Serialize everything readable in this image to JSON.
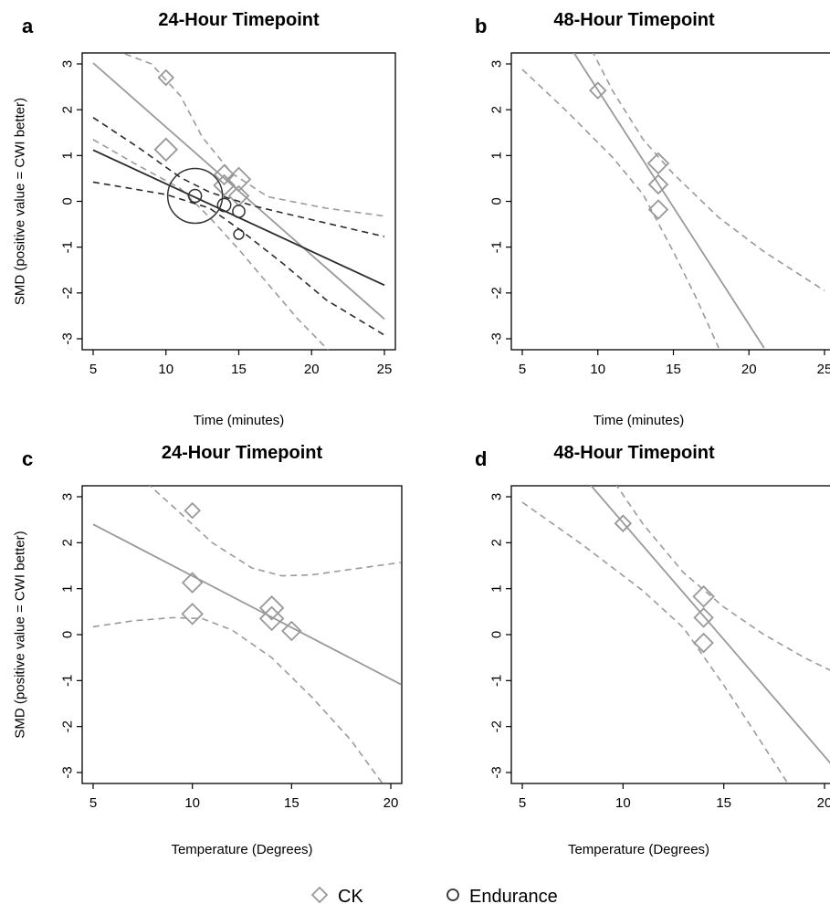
{
  "chart_data": [
    {
      "type": "scatter",
      "panel_letter": "a",
      "title": "24-Hour Timepoint",
      "xlabel": "Time (minutes)",
      "ylabel": "SMD (positive value = CWI better)",
      "xlim": [
        5,
        25
      ],
      "ylim": [
        -3,
        3
      ],
      "xticks": [
        5,
        10,
        15,
        20,
        25
      ],
      "yticks": [
        -3,
        -2,
        -1,
        0,
        1,
        2,
        3
      ],
      "series": [
        {
          "name": "CK",
          "marker": "diamond",
          "color": "#999999",
          "points": [
            {
              "x": 10,
              "y": 2.7,
              "weight": 0.3
            },
            {
              "x": 10,
              "y": 1.13,
              "weight": 0.7
            },
            {
              "x": 14,
              "y": 0.58,
              "weight": 0.55
            },
            {
              "x": 14,
              "y": 0.35,
              "weight": 0.6
            },
            {
              "x": 15,
              "y": 0.48,
              "weight": 0.75
            },
            {
              "x": 15,
              "y": 0.12,
              "weight": 0.55
            }
          ],
          "fit": [
            [
              5,
              3.02
            ],
            [
              25,
              -2.57
            ]
          ],
          "ci_lower": [
            [
              5,
              1.35
            ],
            [
              8,
              0.8
            ],
            [
              11,
              0.28
            ],
            [
              13,
              -0.35
            ],
            [
              15,
              -1.05
            ],
            [
              17,
              -1.8
            ],
            [
              19,
              -2.55
            ],
            [
              21.3,
              -3.3
            ]
          ],
          "ci_upper": [
            [
              6.5,
              3.3
            ],
            [
              9,
              3.0
            ],
            [
              11,
              2.3
            ],
            [
              12.5,
              1.4
            ],
            [
              14.5,
              0.62
            ],
            [
              17,
              0.1
            ],
            [
              21,
              -0.15
            ],
            [
              25,
              -0.32
            ]
          ]
        },
        {
          "name": "Endurance",
          "marker": "circle",
          "color": "#333333",
          "points": [
            {
              "x": 12,
              "y": 0.12,
              "weight": 1.0
            },
            {
              "x": 14,
              "y": -0.08,
              "weight": 0.35
            },
            {
              "x": 15,
              "y": -0.22,
              "weight": 0.3
            },
            {
              "x": 15,
              "y": -0.72,
              "weight": 0.2
            }
          ],
          "fit": [
            [
              5,
              1.12
            ],
            [
              25,
              -1.83
            ]
          ],
          "ci_lower": [
            [
              5,
              0.42
            ],
            [
              10,
              0.15
            ],
            [
              13,
              -0.15
            ],
            [
              15,
              -0.6
            ],
            [
              18,
              -1.35
            ],
            [
              21,
              -2.15
            ],
            [
              25,
              -2.92
            ]
          ],
          "ci_upper": [
            [
              5,
              1.83
            ],
            [
              8,
              1.2
            ],
            [
              11,
              0.52
            ],
            [
              13,
              0.2
            ],
            [
              16,
              -0.1
            ],
            [
              20,
              -0.4
            ],
            [
              25,
              -0.77
            ]
          ]
        }
      ]
    },
    {
      "type": "scatter",
      "panel_letter": "b",
      "title": "48-Hour Timepoint",
      "xlabel": "Time (minutes)",
      "ylabel": "",
      "xlim": [
        5,
        25
      ],
      "ylim": [
        -3,
        3
      ],
      "xticks": [
        5,
        10,
        15,
        20,
        25
      ],
      "yticks": [
        -3,
        -2,
        -1,
        0,
        1,
        2,
        3
      ],
      "series": [
        {
          "name": "CK",
          "marker": "diamond",
          "color": "#999999",
          "points": [
            {
              "x": 10,
              "y": 2.42,
              "weight": 0.35
            },
            {
              "x": 14,
              "y": 0.83,
              "weight": 0.6
            },
            {
              "x": 14,
              "y": 0.37,
              "weight": 0.5
            },
            {
              "x": 14,
              "y": -0.18,
              "weight": 0.5
            }
          ],
          "fit": [
            [
              8.3,
              3.3
            ],
            [
              21,
              -3.2
            ]
          ],
          "ci_lower": [
            [
              5,
              2.88
            ],
            [
              8,
              1.95
            ],
            [
              11,
              0.95
            ],
            [
              13,
              0.15
            ],
            [
              15,
              -1.1
            ],
            [
              16.5,
              -2.1
            ],
            [
              18,
              -3.2
            ]
          ],
          "ci_upper": [
            [
              9.6,
              3.3
            ],
            [
              11,
              2.4
            ],
            [
              13,
              1.35
            ],
            [
              15,
              0.6
            ],
            [
              18,
              -0.35
            ],
            [
              21,
              -1.1
            ],
            [
              25,
              -1.95
            ]
          ]
        }
      ]
    },
    {
      "type": "scatter",
      "panel_letter": "c",
      "title": "24-Hour Timepoint",
      "xlabel": "Temperature (Degrees)",
      "ylabel": "SMD (positive value = CWI better)",
      "xlim": [
        5,
        20
      ],
      "ylim": [
        -3,
        3
      ],
      "xticks": [
        5,
        10,
        15,
        20
      ],
      "yticks": [
        -3,
        -2,
        -1,
        0,
        1,
        2,
        3
      ],
      "series": [
        {
          "name": "CK",
          "marker": "diamond",
          "color": "#999999",
          "points": [
            {
              "x": 10,
              "y": 2.7,
              "weight": 0.3
            },
            {
              "x": 10,
              "y": 1.13,
              "weight": 0.55
            },
            {
              "x": 10,
              "y": 0.45,
              "weight": 0.6
            },
            {
              "x": 14,
              "y": 0.58,
              "weight": 0.75
            },
            {
              "x": 14,
              "y": 0.35,
              "weight": 0.75
            },
            {
              "x": 15,
              "y": 0.08,
              "weight": 0.5
            }
          ],
          "fit": [
            [
              5,
              2.4
            ],
            [
              20.5,
              -1.08
            ]
          ],
          "ci_lower": [
            [
              5,
              0.17
            ],
            [
              7,
              0.3
            ],
            [
              9,
              0.37
            ],
            [
              10.5,
              0.35
            ],
            [
              12,
              0.1
            ],
            [
              14,
              -0.5
            ],
            [
              16,
              -1.35
            ],
            [
              18,
              -2.3
            ],
            [
              19.6,
              -3.25
            ]
          ],
          "ci_upper": [
            [
              7.7,
              3.3
            ],
            [
              9,
              2.8
            ],
            [
              11,
              2.0
            ],
            [
              13,
              1.45
            ],
            [
              14.5,
              1.28
            ],
            [
              16,
              1.3
            ],
            [
              18,
              1.42
            ],
            [
              20.5,
              1.57
            ]
          ]
        }
      ]
    },
    {
      "type": "scatter",
      "panel_letter": "d",
      "title": "48-Hour Timepoint",
      "xlabel": "Temperature (Degrees)",
      "ylabel": "",
      "xlim": [
        5,
        20
      ],
      "ylim": [
        -3,
        3
      ],
      "xticks": [
        5,
        10,
        15,
        20
      ],
      "yticks": [
        -3,
        -2,
        -1,
        0,
        1,
        2,
        3
      ],
      "series": [
        {
          "name": "CK",
          "marker": "diamond",
          "color": "#999999",
          "points": [
            {
              "x": 10,
              "y": 2.42,
              "weight": 0.35
            },
            {
              "x": 14,
              "y": 0.83,
              "weight": 0.6
            },
            {
              "x": 14,
              "y": 0.37,
              "weight": 0.5
            },
            {
              "x": 14,
              "y": -0.18,
              "weight": 0.5
            }
          ],
          "fit": [
            [
              8.3,
              3.3
            ],
            [
              20.5,
              -2.9
            ]
          ],
          "ci_lower": [
            [
              5,
              2.88
            ],
            [
              8,
              1.95
            ],
            [
              11,
              0.95
            ],
            [
              13,
              0.15
            ],
            [
              15,
              -1.1
            ],
            [
              16.5,
              -2.1
            ],
            [
              18.2,
              -3.25
            ]
          ],
          "ci_upper": [
            [
              9.6,
              3.3
            ],
            [
              11,
              2.4
            ],
            [
              13,
              1.35
            ],
            [
              15,
              0.6
            ],
            [
              17,
              0.0
            ],
            [
              19,
              -0.5
            ],
            [
              20.5,
              -0.82
            ]
          ]
        }
      ]
    }
  ],
  "legend": {
    "items": [
      {
        "label": "CK",
        "marker": "diamond",
        "color": "#999999"
      },
      {
        "label": "Endurance",
        "marker": "circle",
        "color": "#333333"
      }
    ]
  }
}
